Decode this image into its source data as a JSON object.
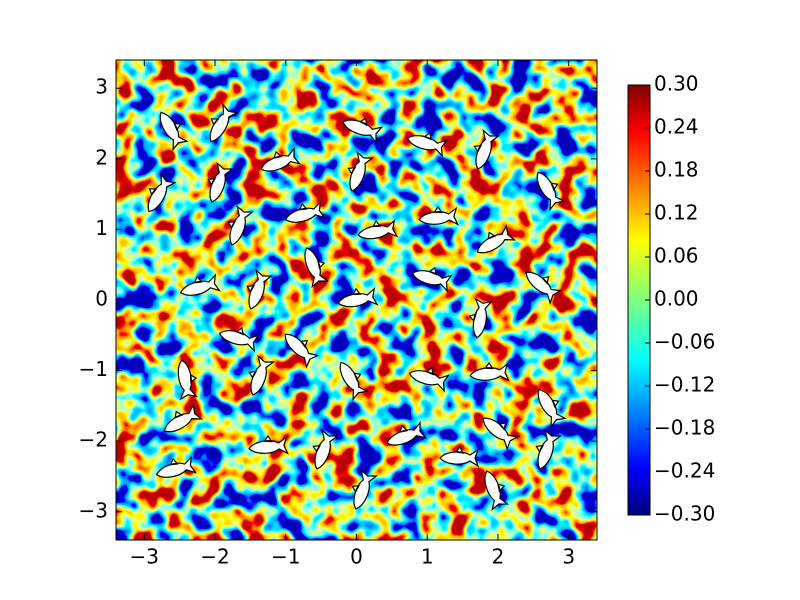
{
  "chart_data": {
    "type": "heatmap",
    "colormap": "jet",
    "xlim": [
      -3.4,
      3.4
    ],
    "ylim": [
      -3.4,
      3.4
    ],
    "xticks": [
      {
        "value": -3,
        "label": "−3"
      },
      {
        "value": -2,
        "label": "−2"
      },
      {
        "value": -1,
        "label": "−1"
      },
      0,
      1,
      2,
      3
    ],
    "yticks": [
      {
        "value": -3,
        "label": "−3"
      },
      {
        "value": -2,
        "label": "−2"
      },
      {
        "value": -1,
        "label": "−1"
      },
      0,
      1,
      2,
      3
    ],
    "clim": [
      -0.3,
      0.3
    ],
    "cticks": [
      {
        "value": -0.3,
        "label": "−0.30"
      },
      {
        "value": -0.24,
        "label": "−0.24"
      },
      {
        "value": -0.18,
        "label": "−0.18"
      },
      {
        "value": -0.12,
        "label": "−0.12"
      },
      {
        "value": -0.06,
        "label": "−0.06"
      },
      {
        "value": 0,
        "label": "0.00"
      },
      {
        "value": 0.06,
        "label": "0.06"
      },
      {
        "value": 0.12,
        "label": "0.12"
      },
      {
        "value": 0.18,
        "label": "0.18"
      },
      {
        "value": 0.24,
        "label": "0.24"
      },
      {
        "value": 0.3,
        "label": "0.30"
      }
    ]
  }
}
